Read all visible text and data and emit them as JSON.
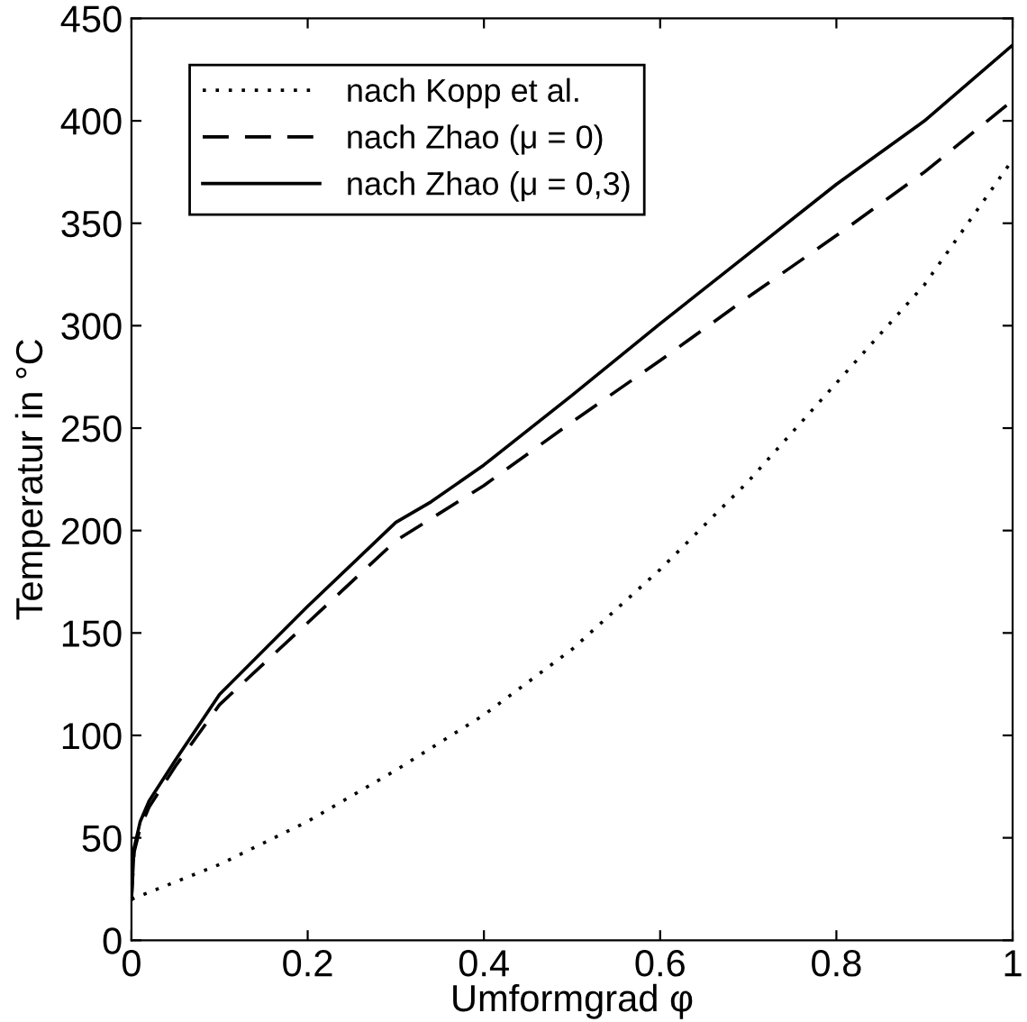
{
  "chart_data": {
    "type": "line",
    "xlabel": "Umformgrad φ",
    "ylabel": "Temperatur in °C",
    "xlim": [
      0,
      1
    ],
    "ylim": [
      0,
      450
    ],
    "xticks": [
      0,
      0.2,
      0.4,
      0.6,
      0.8,
      1
    ],
    "yticks": [
      0,
      50,
      100,
      150,
      200,
      250,
      300,
      350,
      400,
      450
    ],
    "grid": false,
    "legend": "top left",
    "marker": "none",
    "series": [
      {
        "name": "nach Kopp et al.",
        "color": "#000000",
        "line_style": "dotted",
        "x": [
          0,
          0.1,
          0.2,
          0.3,
          0.4,
          0.5,
          0.6,
          0.7,
          0.8,
          0.9,
          1
        ],
        "values": [
          20,
          37,
          58,
          83,
          110,
          142,
          181,
          224,
          272,
          320,
          381
        ]
      },
      {
        "name": "nach Zhao (μ = 0)",
        "color": "#000000",
        "line_style": "dashed",
        "x": [
          0,
          0.003,
          0.01,
          0.02,
          0.05,
          0.1,
          0.2,
          0.3,
          0.4,
          0.5,
          0.6,
          0.7,
          0.8,
          0.9,
          1
        ],
        "values": [
          20,
          43,
          55,
          65,
          85,
          115,
          155,
          195,
          222,
          253,
          283,
          314,
          344,
          375,
          410
        ]
      },
      {
        "name": "nach Zhao (μ = 0,3)",
        "color": "#000000",
        "line_style": "solid",
        "x": [
          0,
          0.003,
          0.01,
          0.02,
          0.05,
          0.1,
          0.2,
          0.3,
          0.34,
          0.4,
          0.5,
          0.6,
          0.7,
          0.8,
          0.9,
          1
        ],
        "values": [
          20,
          45,
          58,
          68,
          88,
          120,
          163,
          204,
          214,
          232,
          266,
          301,
          335,
          369,
          400,
          437
        ]
      }
    ]
  }
}
